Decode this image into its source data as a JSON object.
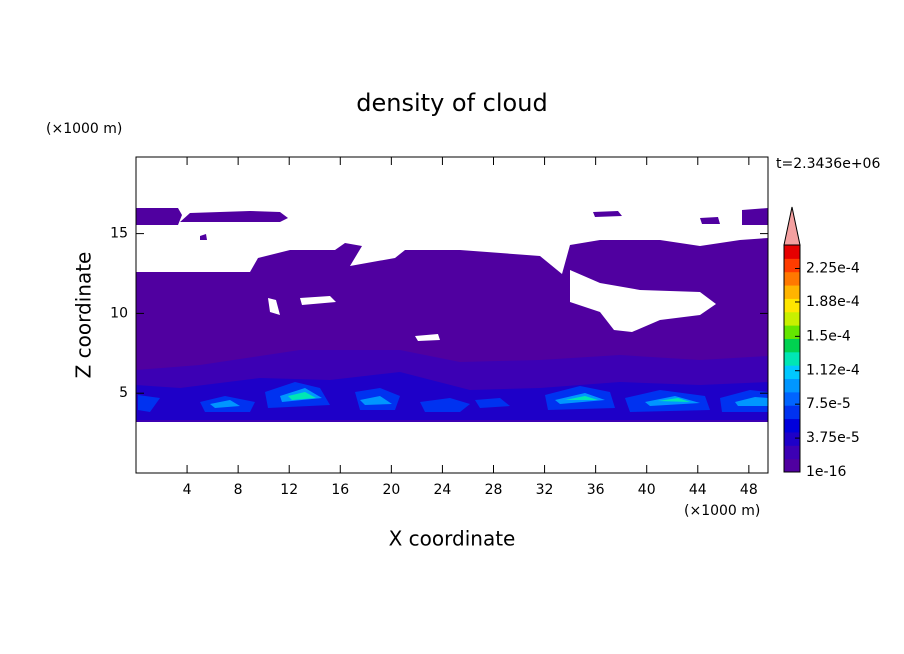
{
  "chart_data": {
    "type": "contour",
    "title": "density of cloud",
    "annotation": "t=2.3436e+06",
    "x_label": "X coordinate",
    "y_label": "Z coordinate",
    "x_unit": "(×1000 m)",
    "y_unit": "(×1000 m)",
    "xlim": [
      0,
      49.5
    ],
    "ylim": [
      0,
      19.8
    ],
    "xticks": [
      4,
      8,
      12,
      16,
      20,
      24,
      28,
      32,
      36,
      40,
      44,
      48
    ],
    "yticks": [
      5,
      10,
      15
    ],
    "clim": [
      1e-16,
      0.000251
    ],
    "cticks": [
      {
        "value": 1e-16,
        "label": "1e-16"
      },
      {
        "value": 3.75e-05,
        "label": "3.75e-5"
      },
      {
        "value": 7.5e-05,
        "label": "7.5e-5"
      },
      {
        "value": 0.000112,
        "label": "1.12e-4"
      },
      {
        "value": 0.00015,
        "label": "1.5e-4"
      },
      {
        "value": 0.000188,
        "label": "1.88e-4"
      },
      {
        "value": 0.000225,
        "label": "2.25e-4"
      }
    ],
    "colors": [
      "#5000a0",
      "#3c00b4",
      "#1e00c8",
      "#0000dc",
      "#0032f0",
      "#0064ff",
      "#0096ff",
      "#00c8ff",
      "#00e6b4",
      "#00d250",
      "#64e600",
      "#c8f000",
      "#ffe600",
      "#ffb400",
      "#ff7800",
      "#ff3c00",
      "#e60000"
    ],
    "over_color": "#f4a0a0"
  }
}
